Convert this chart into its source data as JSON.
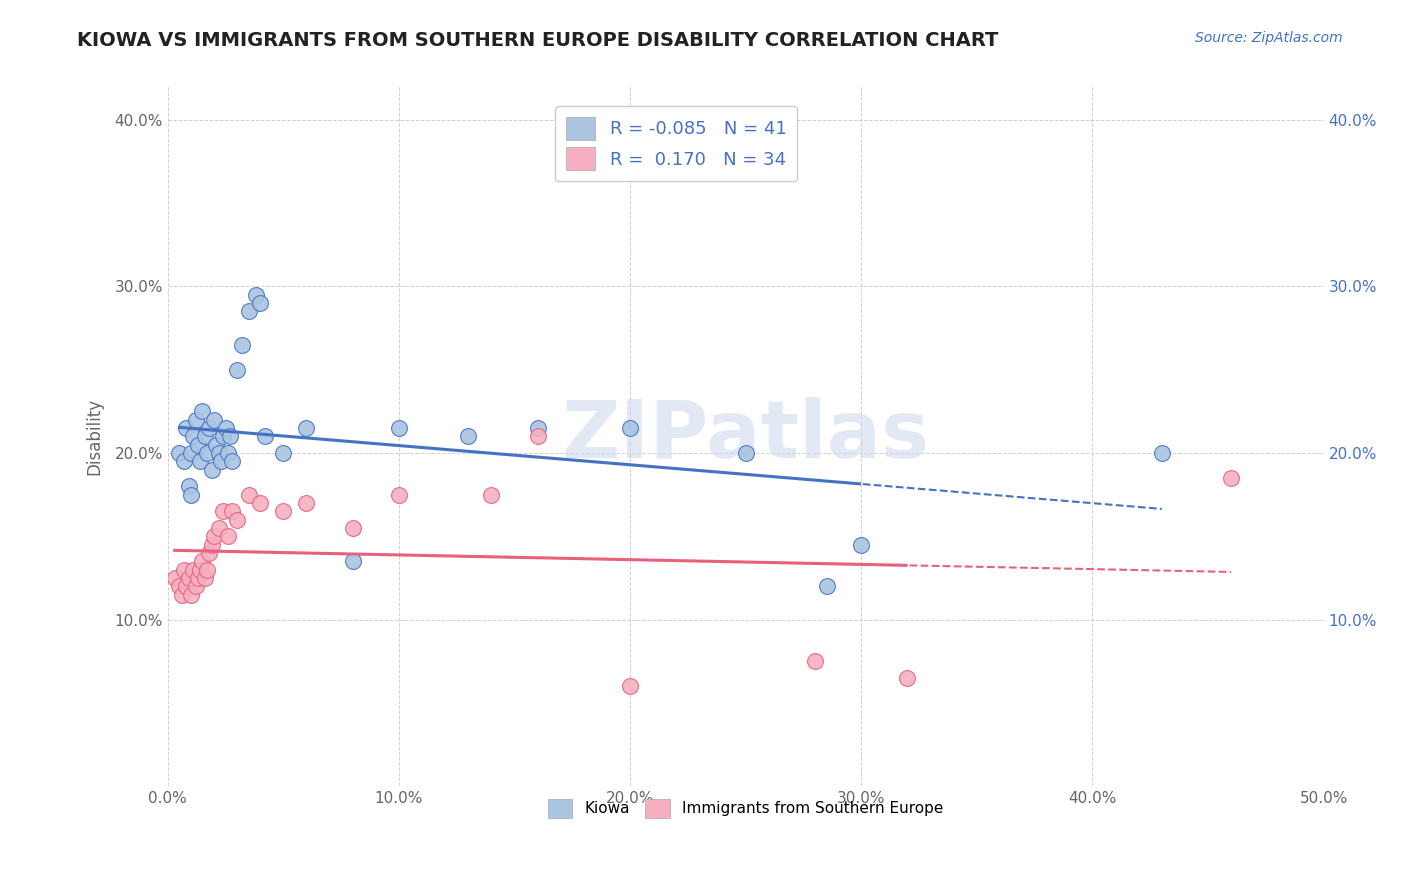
{
  "title": "KIOWA VS IMMIGRANTS FROM SOUTHERN EUROPE DISABILITY CORRELATION CHART",
  "source_text": "Source: ZipAtlas.com",
  "ylabel": "Disability",
  "xlim": [
    0.0,
    0.5
  ],
  "ylim": [
    0.0,
    0.42
  ],
  "x_ticks": [
    0.0,
    0.1,
    0.2,
    0.3,
    0.4,
    0.5
  ],
  "y_ticks": [
    0.0,
    0.1,
    0.2,
    0.3,
    0.4
  ],
  "y_tick_labels_left": [
    "",
    "10.0%",
    "20.0%",
    "30.0%",
    "40.0%"
  ],
  "right_y_ticks": [
    0.1,
    0.2,
    0.3,
    0.4
  ],
  "right_y_tick_labels": [
    "10.0%",
    "20.0%",
    "30.0%",
    "40.0%"
  ],
  "legend_r1": "-0.085",
  "legend_n1": "41",
  "legend_r2": "0.170",
  "legend_n2": "34",
  "kiowa_color": "#aac4e2",
  "immigrants_color": "#f5afc0",
  "kiowa_line_color": "#4472c4",
  "immigrants_line_color": "#e8607a",
  "grid_color": "#d0d0d0",
  "background_color": "#ffffff",
  "kiowa_line_solid_end": 0.3,
  "immigrants_line_solid_end": 0.32,
  "kiowa_x": [
    0.005,
    0.007,
    0.008,
    0.009,
    0.01,
    0.01,
    0.011,
    0.012,
    0.013,
    0.014,
    0.015,
    0.016,
    0.017,
    0.018,
    0.019,
    0.02,
    0.021,
    0.022,
    0.023,
    0.024,
    0.025,
    0.026,
    0.027,
    0.028,
    0.03,
    0.032,
    0.035,
    0.038,
    0.04,
    0.042,
    0.05,
    0.06,
    0.08,
    0.1,
    0.13,
    0.16,
    0.2,
    0.25,
    0.285,
    0.3,
    0.43
  ],
  "kiowa_y": [
    0.2,
    0.195,
    0.215,
    0.18,
    0.175,
    0.2,
    0.21,
    0.22,
    0.205,
    0.195,
    0.225,
    0.21,
    0.2,
    0.215,
    0.19,
    0.22,
    0.205,
    0.2,
    0.195,
    0.21,
    0.215,
    0.2,
    0.21,
    0.195,
    0.25,
    0.265,
    0.285,
    0.295,
    0.29,
    0.21,
    0.2,
    0.215,
    0.135,
    0.215,
    0.21,
    0.215,
    0.215,
    0.2,
    0.12,
    0.145,
    0.2
  ],
  "immigrants_x": [
    0.003,
    0.005,
    0.006,
    0.007,
    0.008,
    0.009,
    0.01,
    0.011,
    0.012,
    0.013,
    0.014,
    0.015,
    0.016,
    0.017,
    0.018,
    0.019,
    0.02,
    0.022,
    0.024,
    0.026,
    0.028,
    0.03,
    0.035,
    0.04,
    0.05,
    0.06,
    0.08,
    0.1,
    0.14,
    0.16,
    0.2,
    0.28,
    0.32,
    0.46
  ],
  "immigrants_y": [
    0.125,
    0.12,
    0.115,
    0.13,
    0.12,
    0.125,
    0.115,
    0.13,
    0.12,
    0.125,
    0.13,
    0.135,
    0.125,
    0.13,
    0.14,
    0.145,
    0.15,
    0.155,
    0.165,
    0.15,
    0.165,
    0.16,
    0.175,
    0.17,
    0.165,
    0.17,
    0.155,
    0.175,
    0.175,
    0.21,
    0.06,
    0.075,
    0.065,
    0.185
  ]
}
